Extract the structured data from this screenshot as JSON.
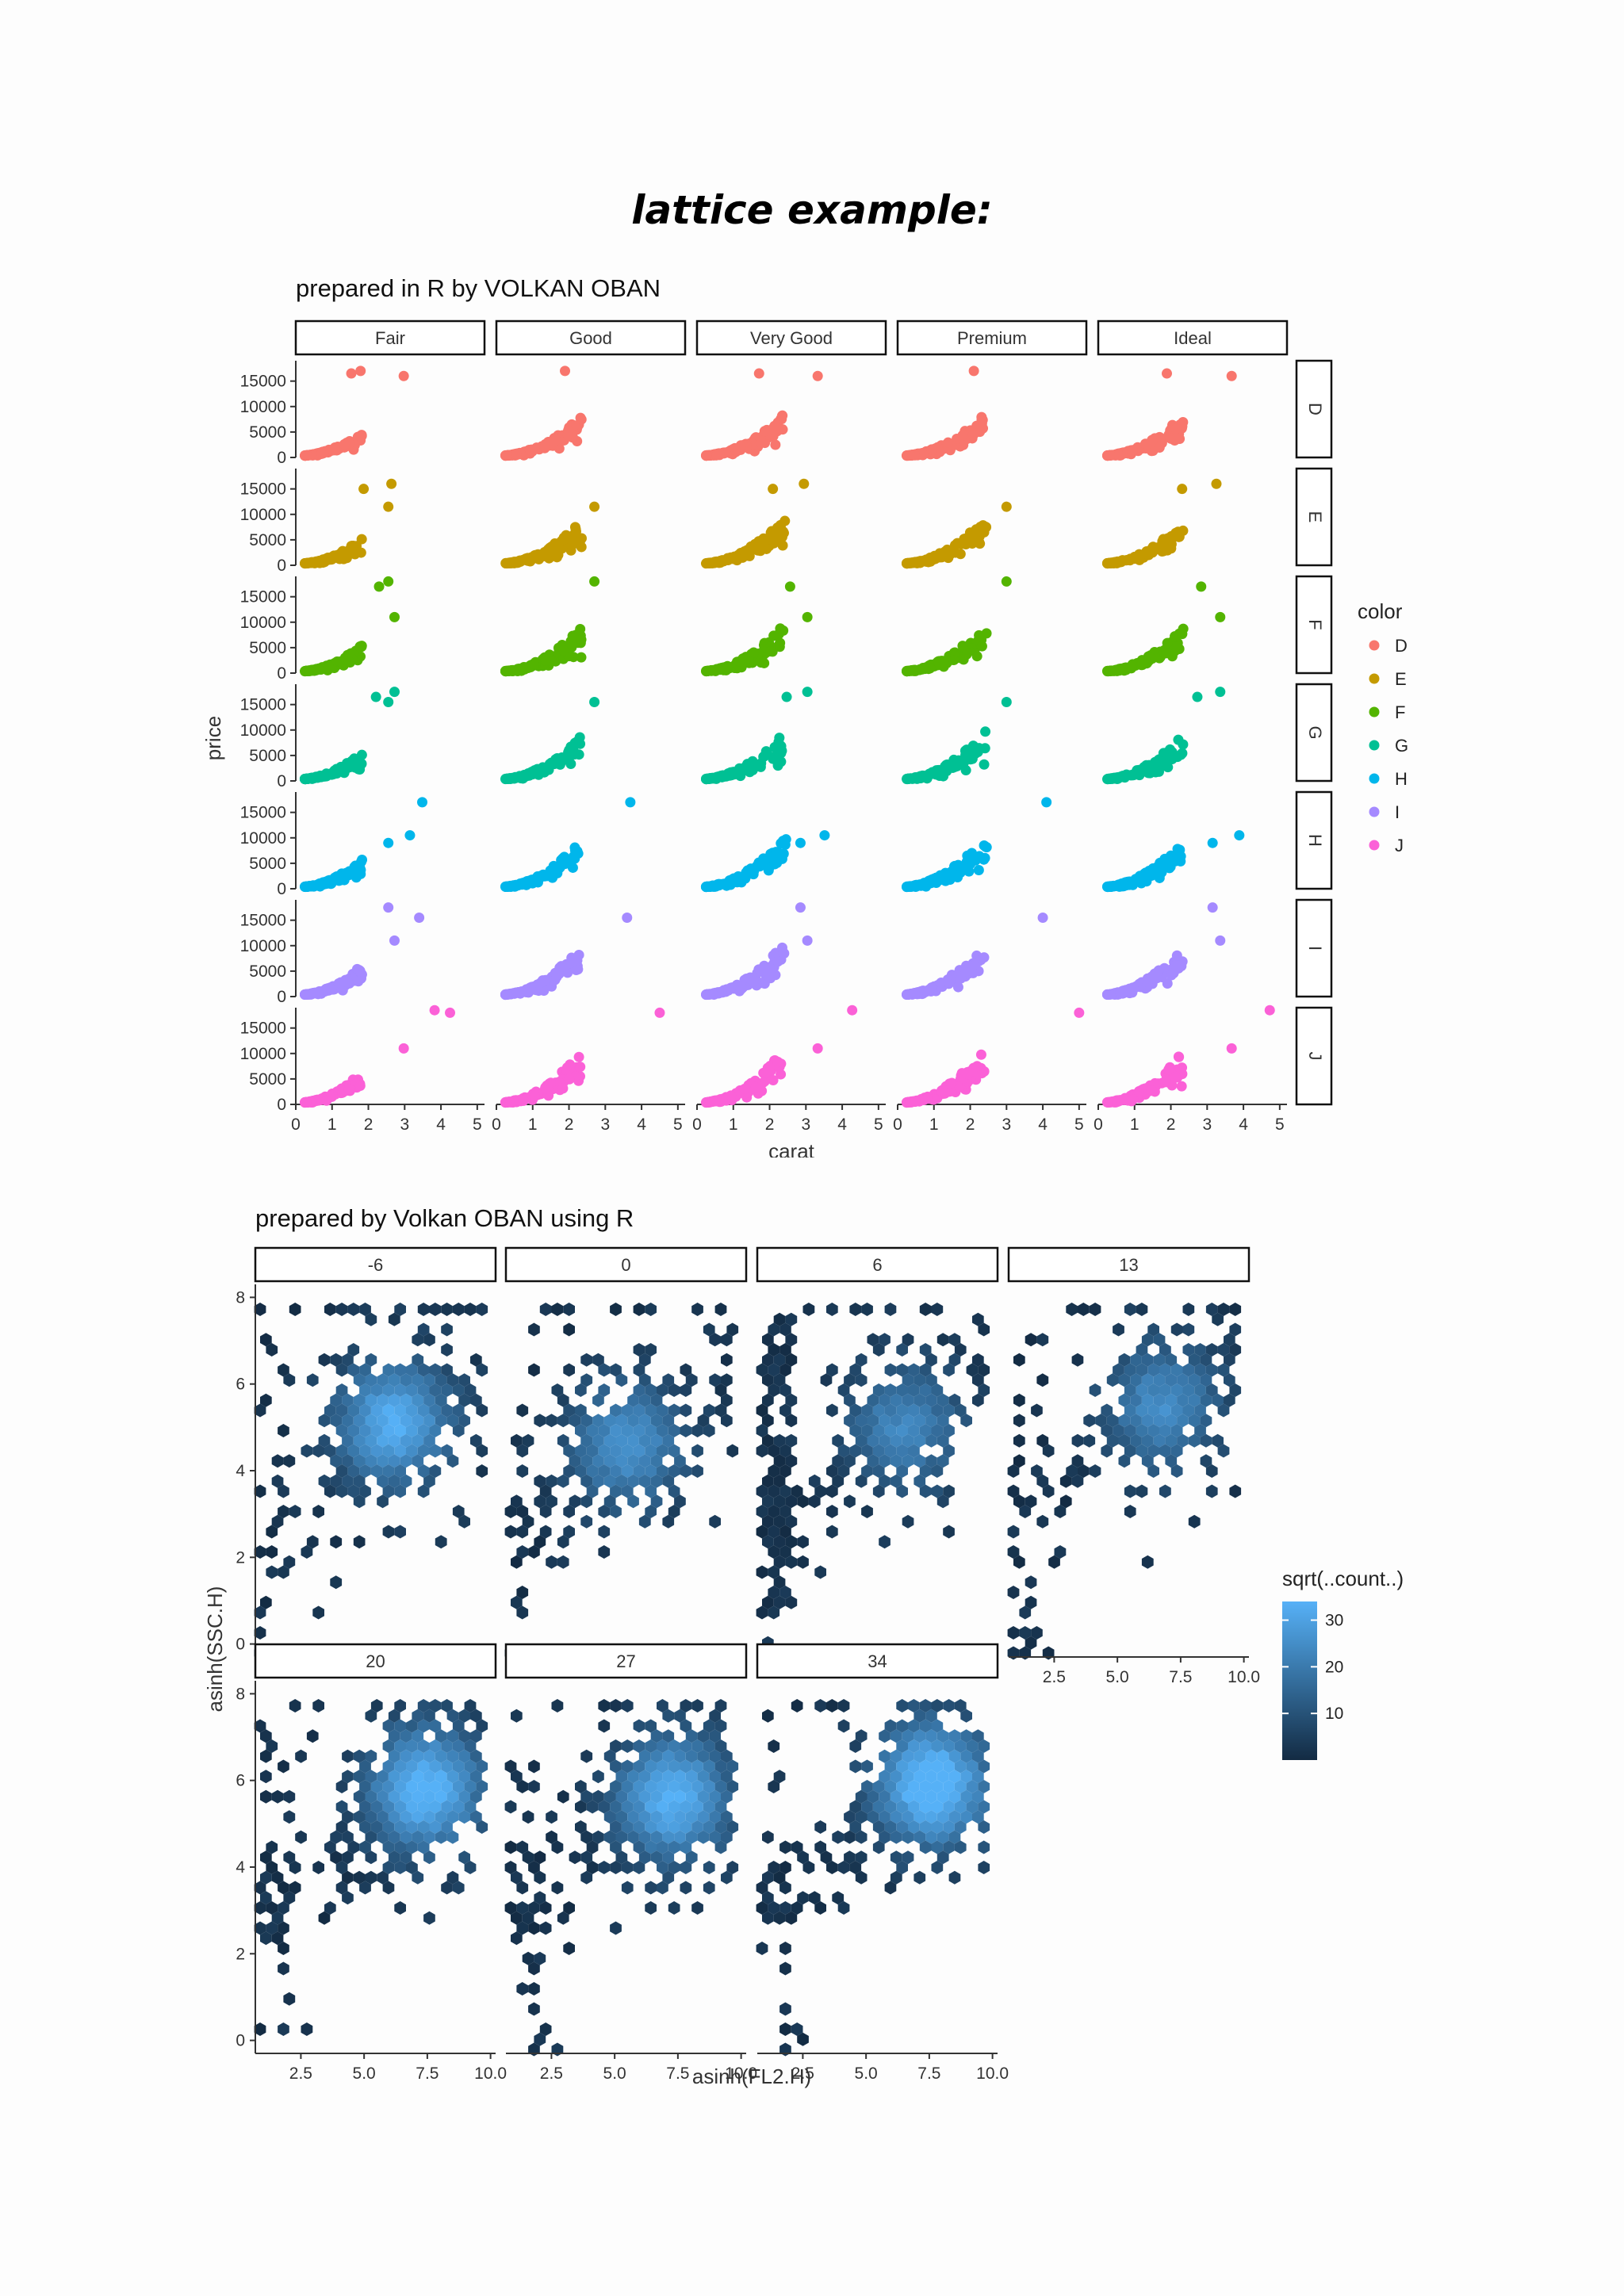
{
  "page": {
    "title": "lattice example:"
  },
  "chart_data": [
    {
      "type": "scatter",
      "title": "prepared in R by VOLKAN OBAN",
      "xlabel": "carat",
      "ylabel": "price",
      "xlim": [
        0,
        5.2
      ],
      "ylim": [
        0,
        19000
      ],
      "x_ticks": [
        "0",
        "1",
        "2",
        "3",
        "4",
        "5"
      ],
      "y_ticks": [
        "0",
        "5000",
        "10000",
        "15000"
      ],
      "grid": false,
      "facet_columns": [
        "Fair",
        "Good",
        "Very Good",
        "Premium",
        "Ideal"
      ],
      "facet_rows": [
        "D",
        "E",
        "F",
        "G",
        "H",
        "I",
        "J"
      ],
      "legend": {
        "title": "color",
        "position": "right",
        "entries": [
          {
            "label": "D",
            "color": "#F8766D"
          },
          {
            "label": "E",
            "color": "#C49A00"
          },
          {
            "label": "F",
            "color": "#53B400"
          },
          {
            "label": "G",
            "color": "#00C094"
          },
          {
            "label": "H",
            "color": "#00B6EB"
          },
          {
            "label": "I",
            "color": "#A58AFF"
          },
          {
            "label": "J",
            "color": "#FB61D7"
          }
        ]
      },
      "series": [
        {
          "name": "D",
          "color": "#F8766D",
          "upper_outliers": [
            [
              1.8,
              16500
            ],
            [
              2.1,
              17000
            ],
            [
              3.5,
              16000
            ]
          ]
        },
        {
          "name": "E",
          "color": "#C49A00",
          "upper_outliers": [
            [
              2.2,
              15000
            ],
            [
              3.0,
              11500
            ],
            [
              3.1,
              16000
            ]
          ]
        },
        {
          "name": "F",
          "color": "#53B400",
          "upper_outliers": [
            [
              2.7,
              17000
            ],
            [
              3.0,
              18000
            ],
            [
              3.2,
              11000
            ]
          ]
        },
        {
          "name": "G",
          "color": "#00C094",
          "upper_outliers": [
            [
              2.6,
              16500
            ],
            [
              3.0,
              15500
            ],
            [
              3.2,
              17500
            ]
          ]
        },
        {
          "name": "H",
          "color": "#00B6EB",
          "upper_outliers": [
            [
              3.7,
              10500
            ],
            [
              4.1,
              17000
            ],
            [
              3.0,
              9000
            ]
          ]
        },
        {
          "name": "I",
          "color": "#A58AFF",
          "upper_outliers": [
            [
              3.0,
              17500
            ],
            [
              4.0,
              15500
            ],
            [
              3.2,
              11000
            ]
          ]
        },
        {
          "name": "J",
          "color": "#FB61D7",
          "upper_outliers": [
            [
              4.5,
              18500
            ],
            [
              5.0,
              18000
            ],
            [
              3.5,
              11000
            ]
          ]
        }
      ]
    },
    {
      "type": "heatmap",
      "subtype": "hexbin",
      "title": "prepared by Volkan OBAN using R",
      "xlabel": "asinh(FL2.H)",
      "ylabel": "asinh(SSC.H)",
      "xlim": [
        0.7,
        10.2
      ],
      "ylim": [
        -0.3,
        8.3
      ],
      "x_ticks": [
        "2.5",
        "5.0",
        "7.5",
        "10.0"
      ],
      "y_ticks": [
        "0",
        "2",
        "4",
        "6",
        "8"
      ],
      "facets": [
        "-6",
        "0",
        "6",
        "13",
        "20",
        "27",
        "34"
      ],
      "legend": {
        "title": "sqrt(..count..)",
        "position": "right",
        "ticks": [
          "10",
          "20",
          "30"
        ],
        "range": [
          0,
          34
        ],
        "color_low": "#132B43",
        "color_high": "#56B1F7"
      }
    }
  ]
}
